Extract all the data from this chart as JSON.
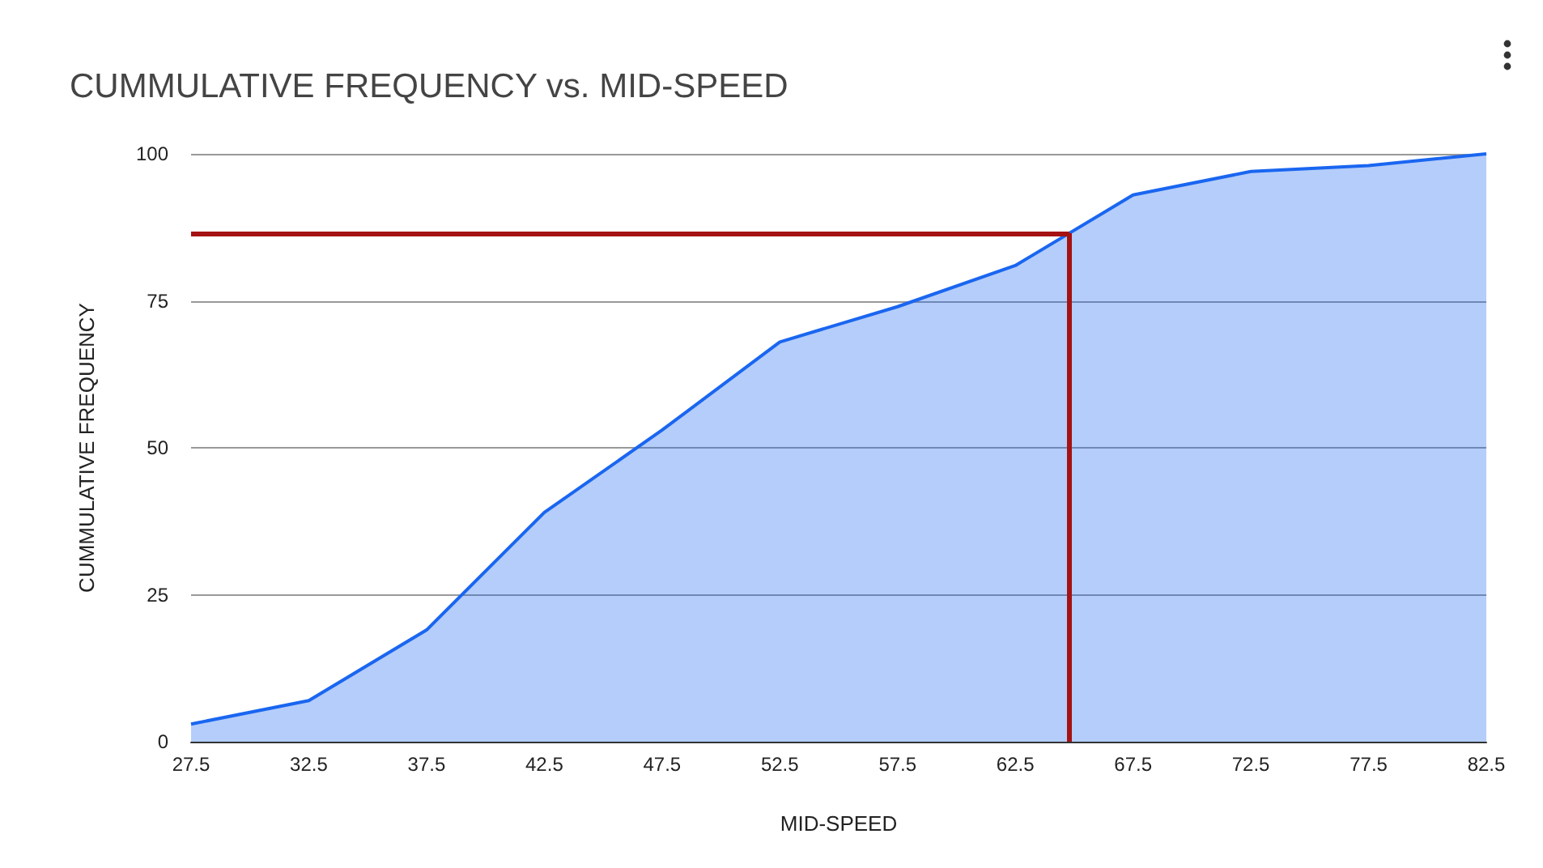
{
  "chart_data": {
    "type": "area",
    "title": "CUMMULATIVE FREQUENCY vs. MID-SPEED",
    "xlabel": "MID-SPEED",
    "ylabel": "CUMMULATIVE FREQUENCY",
    "x": [
      27.5,
      32.5,
      37.5,
      42.5,
      47.5,
      52.5,
      57.5,
      62.5,
      67.5,
      72.5,
      77.5,
      82.5
    ],
    "series": [
      {
        "color": "#1a66f0",
        "values": [
          3,
          7,
          19,
          39,
          53,
          68,
          74,
          81,
          93,
          97,
          98,
          100
        ]
      }
    ],
    "xlim": [
      27.5,
      82.5
    ],
    "xticks": [
      27.5,
      32.5,
      37.5,
      42.5,
      47.5,
      52.5,
      57.5,
      62.5,
      67.5,
      72.5,
      77.5,
      82.5
    ],
    "ylim": [
      0,
      100
    ],
    "yticks": [
      0,
      25,
      50,
      75,
      100
    ],
    "grid": "y",
    "marker": "none",
    "line_style": "solid",
    "ref_lines": [
      {
        "axis": "y",
        "value": 86.5,
        "color": "#a51212"
      },
      {
        "axis": "x",
        "value": 64.8,
        "color": "#a51212"
      }
    ]
  }
}
